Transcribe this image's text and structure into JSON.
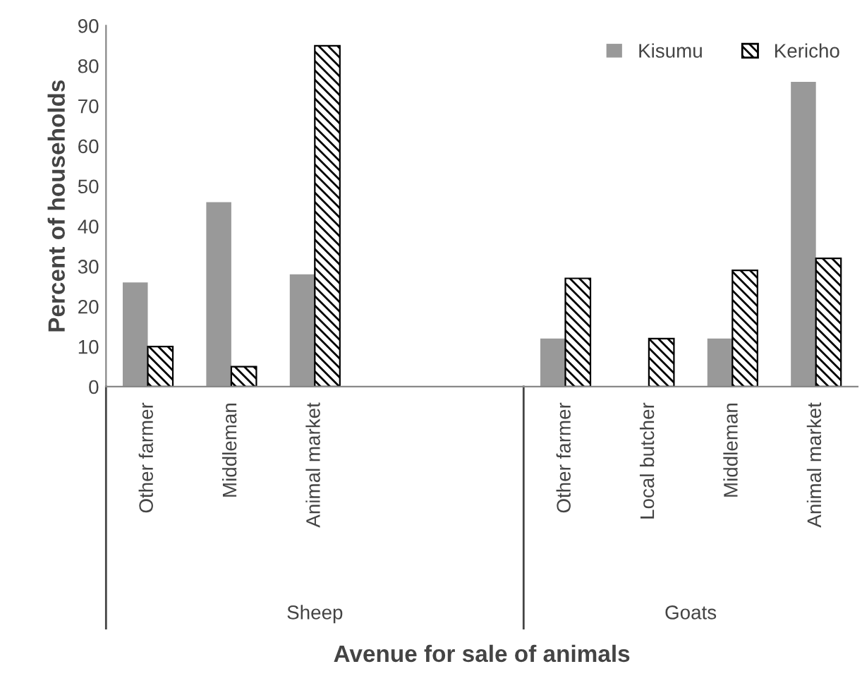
{
  "chart_data": {
    "type": "bar",
    "ylabel": "Percent of households",
    "xlabel": "Avenue for sale of animals",
    "categories": [
      "Other farmer",
      "Middleman",
      "Animal market",
      null,
      null,
      "Other farmer",
      "Local butcher",
      "Middleman",
      "Animal market"
    ],
    "series": [
      {
        "name": "Kisumu",
        "color": "#999999",
        "values": [
          26,
          46,
          28,
          null,
          null,
          12,
          0,
          12,
          76
        ]
      },
      {
        "name": "Kericho",
        "color": "#000000",
        "values": [
          10,
          5,
          85,
          null,
          null,
          27,
          12,
          29,
          32
        ]
      }
    ],
    "ylim": [
      0,
      90
    ],
    "yticks": [
      0,
      10,
      20,
      30,
      40,
      50,
      60,
      70,
      80,
      90
    ],
    "grid": false,
    "legend": "top right",
    "annotations": [
      "Sheep",
      "Goats"
    ]
  }
}
